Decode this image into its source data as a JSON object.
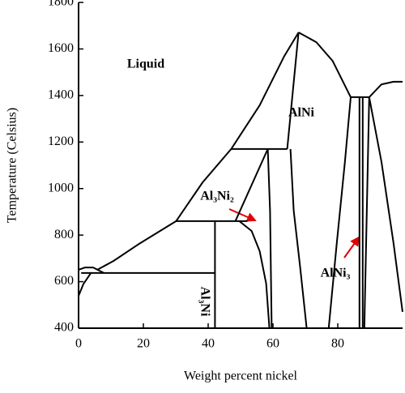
{
  "chart_data": {
    "type": "line",
    "xlabel": "Weight percent nickel",
    "ylabel": "Temperature (Celsius)",
    "xlim": [
      0,
      100
    ],
    "ylim": [
      400,
      1800
    ],
    "xticks": [
      0,
      20,
      40,
      60,
      80
    ],
    "yticks": [
      400,
      600,
      800,
      1000,
      1200,
      1400,
      1600,
      1800
    ],
    "annotations": [
      "Liquid",
      "AlNi",
      "Al₃Ni₂",
      "Al₃Ni",
      "AlNi₃"
    ],
    "series": [
      {
        "color": "#000000",
        "x": [
          5.8,
          10.8,
          18.3,
          30.1,
          38.3,
          47.1,
          55.9,
          63.4,
          67.9
        ],
        "values": [
          651,
          689,
          759,
          860,
          1027,
          1170,
          1358,
          1567,
          1671
        ]
      },
      {
        "color": "#000000",
        "x": [
          67.9,
          73.4,
          78.4,
          84.0
        ],
        "values": [
          1671,
          1629,
          1549,
          1393
        ]
      },
      {
        "color": "#000000",
        "x": [
          89.7,
          93.5,
          97.2,
          100
        ],
        "values": [
          1393,
          1448,
          1459,
          1459
        ]
      },
      {
        "color": "#000000",
        "x": [
          0,
          2,
          4.5,
          7.8
        ],
        "values": [
          651,
          661,
          661,
          637
        ]
      },
      {
        "color": "#000000",
        "x": [
          3.8,
          1.5,
          0
        ],
        "values": [
          637,
          590,
          539
        ]
      },
      {
        "color": "#000000",
        "x": [
          0.8,
          42.1
        ],
        "values": [
          637,
          637
        ]
      },
      {
        "color": "#000000",
        "x": [
          42.1,
          42.1
        ],
        "values": [
          400,
          860
        ]
      },
      {
        "color": "#000000",
        "x": [
          30.1,
          52.1
        ],
        "values": [
          860,
          860
        ]
      },
      {
        "color": "#000000",
        "x": [
          47.1,
          64.4
        ],
        "values": [
          1170,
          1170
        ]
      },
      {
        "color": "#000000",
        "x": [
          49.6,
          53.4,
          55.9,
          57.9,
          58.9
        ],
        "values": [
          860,
          818,
          731,
          592,
          400
        ]
      },
      {
        "color": "#000000",
        "x": [
          48.4,
          58.4
        ],
        "values": [
          860,
          1170
        ]
      },
      {
        "color": "#000000",
        "x": [
          58.4,
          59.1,
          59.6
        ],
        "values": [
          1170,
          905,
          400
        ]
      },
      {
        "color": "#000000",
        "x": [
          64.4,
          67.9
        ],
        "values": [
          1170,
          1671
        ]
      },
      {
        "color": "#000000",
        "x": [
          65.4,
          66.4,
          68.4,
          70.4
        ],
        "values": [
          1170,
          905,
          661,
          400
        ]
      },
      {
        "color": "#000000",
        "x": [
          84.0,
          82.2,
          79.7,
          77.2
        ],
        "values": [
          1393,
          1114,
          766,
          400
        ]
      },
      {
        "color": "#000000",
        "x": [
          86.7,
          86.7
        ],
        "values": [
          400,
          1393
        ]
      },
      {
        "color": "#000000",
        "x": [
          87.7,
          87.7
        ],
        "values": [
          400,
          1393
        ]
      },
      {
        "color": "#000000",
        "x": [
          84.0,
          89.7
        ],
        "values": [
          1393,
          1393
        ]
      },
      {
        "color": "#000000",
        "x": [
          89.7,
          88.2
        ],
        "values": [
          1393,
          400
        ]
      },
      {
        "color": "#000000",
        "x": [
          89.7,
          93.5,
          97.2,
          100
        ],
        "values": [
          1393,
          1114,
          766,
          470
        ]
      }
    ]
  }
}
